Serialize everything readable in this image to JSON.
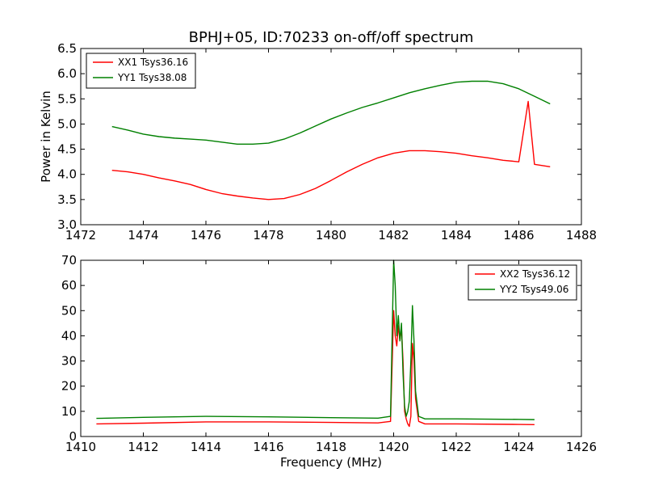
{
  "chart_data": [
    {
      "type": "line",
      "title": "BPHJ+05, ID:70233 on-off/off spectrum",
      "xlabel": "",
      "ylabel": "Power in Kelvin",
      "xlim": [
        1472,
        1488
      ],
      "ylim": [
        3.0,
        6.5
      ],
      "xticks": [
        "1472",
        "1474",
        "1476",
        "1478",
        "1480",
        "1482",
        "1484",
        "1486",
        "1488"
      ],
      "yticks": [
        "3.0",
        "3.5",
        "4.0",
        "4.5",
        "5.0",
        "5.5",
        "6.0",
        "6.5"
      ],
      "legend_position": "upper-left",
      "grid": false,
      "series": [
        {
          "name": "XX1 Tsys36.16",
          "color": "#ff0000",
          "x": [
            1473.0,
            1473.5,
            1474.0,
            1474.5,
            1475.0,
            1475.5,
            1476.0,
            1476.5,
            1477.0,
            1477.5,
            1478.0,
            1478.5,
            1479.0,
            1479.5,
            1480.0,
            1480.5,
            1481.0,
            1481.5,
            1482.0,
            1482.5,
            1483.0,
            1483.5,
            1484.0,
            1484.5,
            1485.0,
            1485.5,
            1486.0,
            1486.3,
            1486.5,
            1487.0
          ],
          "y": [
            4.08,
            4.05,
            4.0,
            3.93,
            3.87,
            3.8,
            3.7,
            3.62,
            3.57,
            3.53,
            3.5,
            3.52,
            3.6,
            3.72,
            3.88,
            4.05,
            4.2,
            4.33,
            4.42,
            4.47,
            4.47,
            4.45,
            4.42,
            4.37,
            4.33,
            4.28,
            4.25,
            5.45,
            4.2,
            4.15
          ]
        },
        {
          "name": "YY1 Tsys38.08",
          "color": "#008000",
          "x": [
            1473.0,
            1473.5,
            1474.0,
            1474.5,
            1475.0,
            1475.5,
            1476.0,
            1476.5,
            1477.0,
            1477.5,
            1478.0,
            1478.5,
            1479.0,
            1479.5,
            1480.0,
            1480.5,
            1481.0,
            1481.5,
            1482.0,
            1482.5,
            1483.0,
            1483.5,
            1484.0,
            1484.5,
            1485.0,
            1485.5,
            1486.0,
            1486.5,
            1487.0
          ],
          "y": [
            4.95,
            4.88,
            4.8,
            4.75,
            4.72,
            4.7,
            4.68,
            4.64,
            4.6,
            4.6,
            4.62,
            4.7,
            4.82,
            4.96,
            5.1,
            5.22,
            5.33,
            5.42,
            5.52,
            5.62,
            5.7,
            5.77,
            5.83,
            5.85,
            5.85,
            5.8,
            5.7,
            5.55,
            5.4
          ]
        }
      ]
    },
    {
      "type": "line",
      "title": "",
      "xlabel": "Frequency (MHz)",
      "ylabel": "",
      "xlim": [
        1410,
        1426
      ],
      "ylim": [
        0,
        70
      ],
      "xticks": [
        "1410",
        "1412",
        "1414",
        "1416",
        "1418",
        "1420",
        "1422",
        "1424",
        "1426"
      ],
      "yticks": [
        "0",
        "10",
        "20",
        "30",
        "40",
        "50",
        "60",
        "70"
      ],
      "legend_position": "upper-right",
      "grid": false,
      "series": [
        {
          "name": "XX2 Tsys36.12",
          "color": "#ff0000",
          "x": [
            1410.5,
            1412.0,
            1414.0,
            1416.0,
            1418.0,
            1419.5,
            1419.9,
            1420.0,
            1420.05,
            1420.1,
            1420.15,
            1420.2,
            1420.25,
            1420.3,
            1420.35,
            1420.4,
            1420.45,
            1420.5,
            1420.55,
            1420.6,
            1420.65,
            1420.7,
            1420.8,
            1421.0,
            1422.0,
            1424.0,
            1424.5
          ],
          "y": [
            5.0,
            5.3,
            5.8,
            5.8,
            5.6,
            5.4,
            6.0,
            50.0,
            40.0,
            36.0,
            44.0,
            38.0,
            43.0,
            30.0,
            10.0,
            7.0,
            5.0,
            4.0,
            8.0,
            37.0,
            30.0,
            15.0,
            6.0,
            5.0,
            5.0,
            4.8,
            4.7
          ]
        },
        {
          "name": "YY2 Tsys49.06",
          "color": "#008000",
          "x": [
            1410.5,
            1412.0,
            1414.0,
            1416.0,
            1418.0,
            1419.5,
            1419.9,
            1420.0,
            1420.05,
            1420.1,
            1420.15,
            1420.2,
            1420.25,
            1420.3,
            1420.35,
            1420.4,
            1420.45,
            1420.5,
            1420.55,
            1420.6,
            1420.65,
            1420.7,
            1420.8,
            1421.0,
            1422.0,
            1424.0,
            1424.5
          ],
          "y": [
            7.2,
            7.6,
            8.0,
            7.8,
            7.5,
            7.3,
            8.0,
            70.0,
            60.0,
            40.0,
            48.0,
            38.0,
            45.0,
            25.0,
            12.0,
            8.0,
            10.0,
            14.0,
            30.0,
            52.0,
            38.0,
            18.0,
            8.0,
            7.0,
            7.0,
            6.8,
            6.7
          ]
        }
      ]
    }
  ]
}
